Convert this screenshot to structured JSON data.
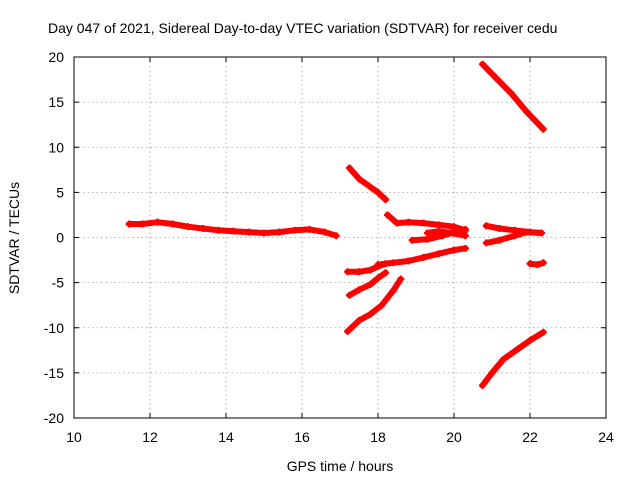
{
  "chart_data": {
    "type": "scatter",
    "title": "Day 047 of 2021, Sidereal Day-to-day VTEC variation (SDTVAR) for receiver cedu",
    "xlabel": "GPS time / hours",
    "ylabel": "SDTVAR / TECUs",
    "xlim": [
      10,
      24
    ],
    "ylim": [
      -20,
      20
    ],
    "xticks": [
      10,
      12,
      14,
      16,
      18,
      20,
      22,
      24
    ],
    "yticks": [
      -20,
      -15,
      -10,
      -5,
      0,
      5,
      10,
      15,
      20
    ],
    "grid": true,
    "legend": "none",
    "marker_color": "#ff0000",
    "series": [
      {
        "x": [
          11.45,
          11.8,
          12.2,
          12.6,
          13.0,
          13.4,
          13.8,
          14.2,
          14.6,
          15.0,
          15.4,
          15.8,
          16.2,
          16.6,
          16.9
        ],
        "y": [
          1.5,
          1.5,
          1.7,
          1.5,
          1.2,
          1.0,
          0.8,
          0.7,
          0.6,
          0.5,
          0.6,
          0.8,
          0.9,
          0.6,
          0.2
        ]
      },
      {
        "x": [
          17.25,
          17.5,
          17.8,
          18.0,
          18.2
        ],
        "y": [
          7.7,
          6.5,
          5.6,
          5.0,
          4.2
        ]
      },
      {
        "x": [
          18.25,
          18.5,
          18.8,
          19.2,
          19.6,
          20.0,
          20.3
        ],
        "y": [
          2.5,
          1.6,
          1.7,
          1.6,
          1.4,
          1.2,
          0.8
        ]
      },
      {
        "x": [
          19.3,
          19.6,
          19.9,
          20.2,
          20.3
        ],
        "y": [
          0.5,
          0.7,
          0.5,
          0.3,
          0.2
        ]
      },
      {
        "x": [
          18.9,
          19.3,
          19.7,
          20.0,
          20.3
        ],
        "y": [
          -0.3,
          -0.2,
          0.2,
          0.6,
          0.9
        ]
      },
      {
        "x": [
          18.0,
          18.4,
          18.8,
          19.2,
          19.6,
          20.0,
          20.3
        ],
        "y": [
          -3.0,
          -2.8,
          -2.6,
          -2.2,
          -1.8,
          -1.4,
          -1.2
        ]
      },
      {
        "x": [
          17.2,
          17.5,
          17.8,
          18.0,
          18.2
        ],
        "y": [
          -3.8,
          -3.8,
          -3.6,
          -3.2,
          -2.9
        ]
      },
      {
        "x": [
          17.25,
          17.5,
          17.8,
          18.0,
          18.2
        ],
        "y": [
          -6.4,
          -5.8,
          -5.2,
          -4.5,
          -3.9
        ]
      },
      {
        "x": [
          17.2,
          17.5,
          17.8,
          18.1,
          18.4,
          18.6
        ],
        "y": [
          -10.4,
          -9.2,
          -8.5,
          -7.5,
          -5.9,
          -4.6
        ]
      },
      {
        "x": [
          20.85,
          21.2,
          21.6,
          22.0,
          22.3
        ],
        "y": [
          1.3,
          1.0,
          0.8,
          0.6,
          0.5
        ]
      },
      {
        "x": [
          20.85,
          21.2,
          21.6,
          21.9,
          22.3
        ],
        "y": [
          -0.6,
          -0.3,
          0.2,
          0.6,
          0.5
        ]
      },
      {
        "x": [
          22.0,
          22.2,
          22.35
        ],
        "y": [
          -2.9,
          -3.0,
          -2.8
        ]
      },
      {
        "x": [
          20.75,
          21.1,
          21.5,
          21.9,
          22.35
        ],
        "y": [
          19.2,
          17.7,
          16.0,
          14.0,
          12.0
        ]
      },
      {
        "x": [
          20.75,
          21.0,
          21.3,
          21.7,
          22.0,
          22.35
        ],
        "y": [
          -16.4,
          -15.0,
          -13.5,
          -12.3,
          -11.4,
          -10.5
        ]
      }
    ]
  }
}
